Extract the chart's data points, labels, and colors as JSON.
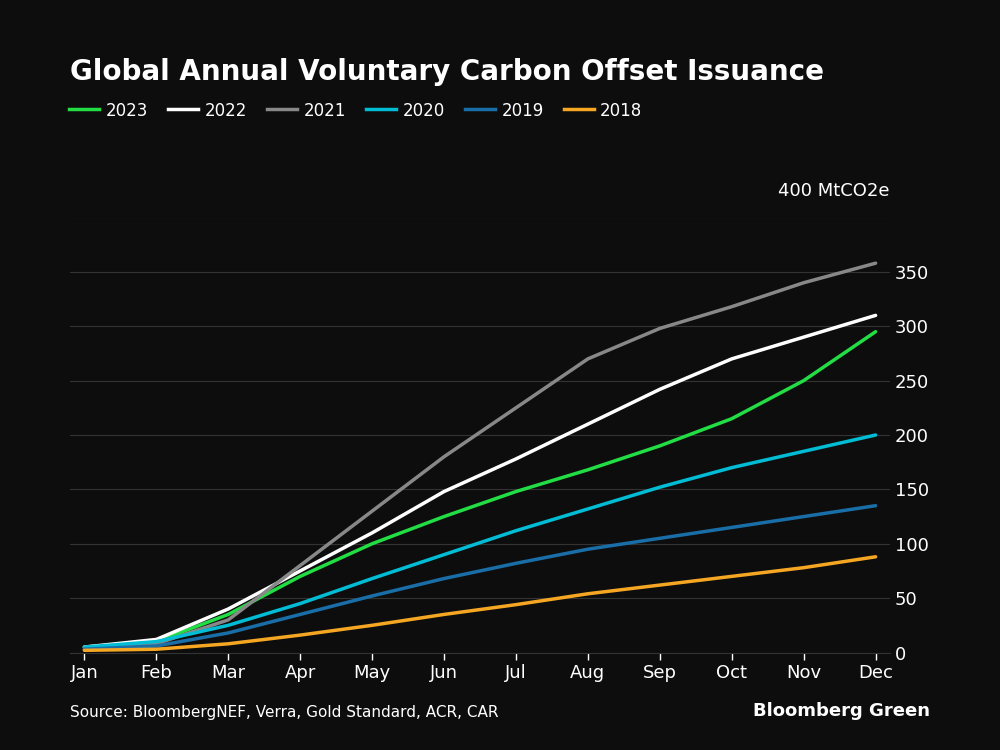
{
  "title": "Global Annual Voluntary Carbon Offset Issuance",
  "ylabel": "400 MtCO2e",
  "source": "Source: BloombergNEF, Verra, Gold Standard, ACR, CAR",
  "branding": "Bloomberg Green",
  "background_color": "#0d0d0d",
  "text_color": "#ffffff",
  "grid_color": "#333333",
  "yticks": [
    0,
    50,
    100,
    150,
    200,
    250,
    300,
    350
  ],
  "months": [
    "Jan",
    "Feb",
    "Mar",
    "Apr",
    "May",
    "Jun",
    "Jul",
    "Aug",
    "Sep",
    "Oct",
    "Nov",
    "Dec"
  ],
  "series": [
    {
      "label": "2023",
      "color": "#22dd44",
      "linewidth": 2.5,
      "data": [
        5,
        10,
        35,
        70,
        100,
        125,
        148,
        168,
        190,
        215,
        250,
        295
      ]
    },
    {
      "label": "2022",
      "color": "#ffffff",
      "linewidth": 2.5,
      "data": [
        5,
        12,
        40,
        75,
        110,
        148,
        178,
        210,
        242,
        270,
        290,
        310
      ]
    },
    {
      "label": "2021",
      "color": "#888888",
      "linewidth": 2.5,
      "data": [
        3,
        8,
        30,
        80,
        130,
        180,
        225,
        270,
        298,
        318,
        340,
        358
      ]
    },
    {
      "label": "2020",
      "color": "#00bcd4",
      "linewidth": 2.5,
      "data": [
        5,
        10,
        25,
        45,
        68,
        90,
        112,
        132,
        152,
        170,
        185,
        200
      ]
    },
    {
      "label": "2019",
      "color": "#1a6ea8",
      "linewidth": 2.5,
      "data": [
        3,
        6,
        18,
        35,
        52,
        68,
        82,
        95,
        105,
        115,
        125,
        135
      ]
    },
    {
      "label": "2018",
      "color": "#f5a623",
      "linewidth": 2.5,
      "data": [
        2,
        3,
        8,
        16,
        25,
        35,
        44,
        54,
        62,
        70,
        78,
        88
      ]
    }
  ],
  "ylim": [
    0,
    400
  ],
  "title_fontsize": 20,
  "legend_fontsize": 12,
  "tick_fontsize": 13,
  "source_fontsize": 11,
  "branding_fontsize": 13
}
